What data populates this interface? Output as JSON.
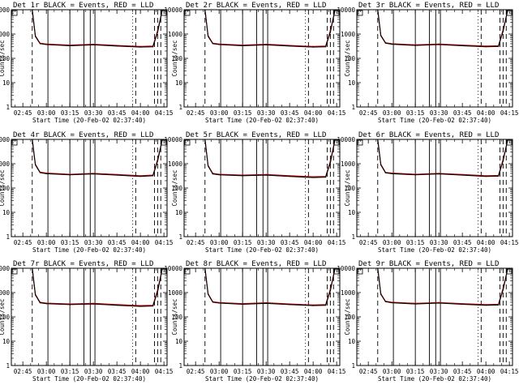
{
  "panels_meta": {
    "title_suffix": " BLACK = Events, RED = LLD",
    "xlabel": "Start Time (20-Feb-02 02:37:40)",
    "ylabel": "Counts/sec",
    "x_tick_labels": [
      "02:45",
      "03:00",
      "03:15",
      "03:30",
      "03:45",
      "04:00",
      "04:15"
    ],
    "y_tick_labels": [
      "1",
      "10",
      "100",
      "1000",
      "10000"
    ]
  },
  "chart_data": [
    {
      "type": "line",
      "title": "Det 1r BLACK = Events, RED = LLD",
      "xlabel": "Start Time (20-Feb-02 02:37:40)",
      "ylabel": "Counts/sec",
      "scale_y": "log",
      "ylim": [
        1,
        10000
      ],
      "x": [
        "02:51",
        "02:53",
        "02:56",
        "03:00",
        "03:15",
        "03:30",
        "03:45",
        "04:00",
        "04:08",
        "04:11",
        "04:14"
      ],
      "series": [
        {
          "name": "Events",
          "color": "#000000",
          "values": [
            10000,
            800,
            400,
            370,
            330,
            360,
            320,
            290,
            300,
            1200,
            10000
          ]
        },
        {
          "name": "LLD",
          "color": "#cc0000",
          "values": [
            10000,
            850,
            420,
            390,
            350,
            380,
            340,
            310,
            320,
            1400,
            10000
          ]
        }
      ]
    },
    {
      "type": "line",
      "title": "Det 2r BLACK = Events, RED = LLD",
      "xlabel": "Start Time (20-Feb-02 02:37:40)",
      "ylabel": "Counts/sec",
      "scale_y": "log",
      "ylim": [
        1,
        10000
      ],
      "x": [
        "02:51",
        "02:53",
        "02:56",
        "03:00",
        "03:15",
        "03:30",
        "03:45",
        "04:00",
        "04:08",
        "04:11",
        "04:14"
      ],
      "series": [
        {
          "name": "Events",
          "color": "#000000",
          "values": [
            10000,
            800,
            400,
            370,
            330,
            360,
            320,
            290,
            300,
            1200,
            10000
          ]
        },
        {
          "name": "LLD",
          "color": "#cc0000",
          "values": [
            10000,
            850,
            420,
            390,
            350,
            380,
            340,
            310,
            320,
            1400,
            10000
          ]
        }
      ]
    },
    {
      "type": "line",
      "title": "Det 3r BLACK = Events, RED = LLD",
      "xlabel": "Start Time (20-Feb-02 02:37:40)",
      "ylabel": "Counts/sec",
      "scale_y": "log",
      "ylim": [
        1,
        10000
      ],
      "x": [
        "02:51",
        "02:53",
        "02:56",
        "03:00",
        "03:15",
        "03:30",
        "03:45",
        "04:00",
        "04:08",
        "04:11",
        "04:14"
      ],
      "series": [
        {
          "name": "Events",
          "color": "#000000",
          "values": [
            10000,
            850,
            420,
            380,
            340,
            370,
            330,
            300,
            310,
            1300,
            10000
          ]
        },
        {
          "name": "LLD",
          "color": "#cc0000",
          "values": [
            10000,
            900,
            440,
            400,
            360,
            390,
            350,
            320,
            330,
            1500,
            10000
          ]
        }
      ]
    },
    {
      "type": "line",
      "title": "Det 4r BLACK = Events, RED = LLD",
      "xlabel": "Start Time (20-Feb-02 02:37:40)",
      "ylabel": "Counts/sec",
      "scale_y": "log",
      "ylim": [
        1,
        10000
      ],
      "x": [
        "02:51",
        "02:53",
        "02:56",
        "03:00",
        "03:15",
        "03:30",
        "03:45",
        "04:00",
        "04:08",
        "04:11",
        "04:14"
      ],
      "series": [
        {
          "name": "Events",
          "color": "#000000",
          "values": [
            10000,
            900,
            430,
            390,
            350,
            380,
            340,
            300,
            320,
            1300,
            10000
          ]
        },
        {
          "name": "LLD",
          "color": "#cc0000",
          "values": [
            10000,
            950,
            450,
            410,
            370,
            400,
            360,
            320,
            340,
            1500,
            10000
          ]
        }
      ]
    },
    {
      "type": "line",
      "title": "Det 5r BLACK = Events, RED = LLD",
      "xlabel": "Start Time (20-Feb-02 02:37:40)",
      "ylabel": "Counts/sec",
      "scale_y": "log",
      "ylim": [
        1,
        10000
      ],
      "x": [
        "02:51",
        "02:53",
        "02:56",
        "03:00",
        "03:15",
        "03:30",
        "03:45",
        "04:00",
        "04:08",
        "04:11",
        "04:14"
      ],
      "series": [
        {
          "name": "Events",
          "color": "#000000",
          "values": [
            10000,
            800,
            380,
            350,
            320,
            340,
            300,
            270,
            280,
            1100,
            10000
          ]
        },
        {
          "name": "LLD",
          "color": "#cc0000",
          "values": [
            10000,
            850,
            400,
            370,
            340,
            360,
            320,
            290,
            300,
            1300,
            10000
          ]
        }
      ]
    },
    {
      "type": "line",
      "title": "Det 6r BLACK = Events, RED = LLD",
      "xlabel": "Start Time (20-Feb-02 02:37:40)",
      "ylabel": "Counts/sec",
      "scale_y": "log",
      "ylim": [
        1,
        10000
      ],
      "x": [
        "02:51",
        "02:53",
        "02:56",
        "03:00",
        "03:15",
        "03:30",
        "03:45",
        "04:00",
        "04:08",
        "04:11",
        "04:14"
      ],
      "series": [
        {
          "name": "Events",
          "color": "#000000",
          "values": [
            10000,
            900,
            420,
            390,
            350,
            380,
            340,
            300,
            310,
            1300,
            10000
          ]
        },
        {
          "name": "LLD",
          "color": "#cc0000",
          "values": [
            10000,
            950,
            440,
            410,
            370,
            400,
            360,
            320,
            330,
            1500,
            10000
          ]
        }
      ]
    },
    {
      "type": "line",
      "title": "Det 7r BLACK = Events, RED = LLD",
      "xlabel": "Start Time (20-Feb-02 02:37:40)",
      "ylabel": "Counts/sec",
      "scale_y": "log",
      "ylim": [
        1,
        10000
      ],
      "x": [
        "02:51",
        "02:53",
        "02:56",
        "03:00",
        "03:15",
        "03:30",
        "03:45",
        "04:00",
        "04:08",
        "04:11",
        "04:14"
      ],
      "series": [
        {
          "name": "Events",
          "color": "#000000",
          "values": [
            10000,
            800,
            380,
            350,
            320,
            340,
            300,
            270,
            280,
            1100,
            10000
          ]
        },
        {
          "name": "LLD",
          "color": "#cc0000",
          "values": [
            10000,
            850,
            400,
            370,
            340,
            360,
            320,
            290,
            300,
            1300,
            10000
          ]
        }
      ]
    },
    {
      "type": "line",
      "title": "Det 8r BLACK = Events, RED = LLD",
      "xlabel": "Start Time (20-Feb-02 02:37:40)",
      "ylabel": "Counts/sec",
      "scale_y": "log",
      "ylim": [
        1,
        10000
      ],
      "x": [
        "02:51",
        "02:53",
        "02:56",
        "03:00",
        "03:15",
        "03:30",
        "03:45",
        "04:00",
        "04:08",
        "04:11",
        "04:14"
      ],
      "series": [
        {
          "name": "Events",
          "color": "#000000",
          "values": [
            10000,
            850,
            400,
            370,
            330,
            360,
            320,
            290,
            300,
            1200,
            10000
          ]
        },
        {
          "name": "LLD",
          "color": "#cc0000",
          "values": [
            10000,
            900,
            420,
            390,
            350,
            380,
            340,
            310,
            320,
            1400,
            10000
          ]
        }
      ]
    },
    {
      "type": "line",
      "title": "Det 9r BLACK = Events, RED = LLD",
      "xlabel": "Start Time (20-Feb-02 02:37:40)",
      "ylabel": "Counts/sec",
      "scale_y": "log",
      "ylim": [
        1,
        10000
      ],
      "x": [
        "02:51",
        "02:53",
        "02:56",
        "03:00",
        "03:15",
        "03:30",
        "03:45",
        "04:00",
        "04:08",
        "04:11",
        "04:14"
      ],
      "series": [
        {
          "name": "Events",
          "color": "#000000",
          "values": [
            10000,
            850,
            420,
            380,
            340,
            370,
            330,
            300,
            310,
            1300,
            10000
          ]
        },
        {
          "name": "LLD",
          "color": "#cc0000",
          "values": [
            10000,
            900,
            440,
            400,
            360,
            390,
            350,
            320,
            330,
            1500,
            10000
          ]
        }
      ]
    }
  ],
  "panel_labels": [
    "Det 1r",
    "Det 2r",
    "Det 3r",
    "Det 4r",
    "Det 5r",
    "Det 6r",
    "Det 7r",
    "Det 8r",
    "Det 9r"
  ],
  "markers": {
    "dashed": [
      "02:51",
      "03:57",
      "04:09",
      "04:11",
      "04:13"
    ],
    "solid": [
      "03:01",
      "03:15",
      "03:24",
      "03:28",
      "03:31"
    ],
    "dotted": [
      "03:55"
    ]
  }
}
